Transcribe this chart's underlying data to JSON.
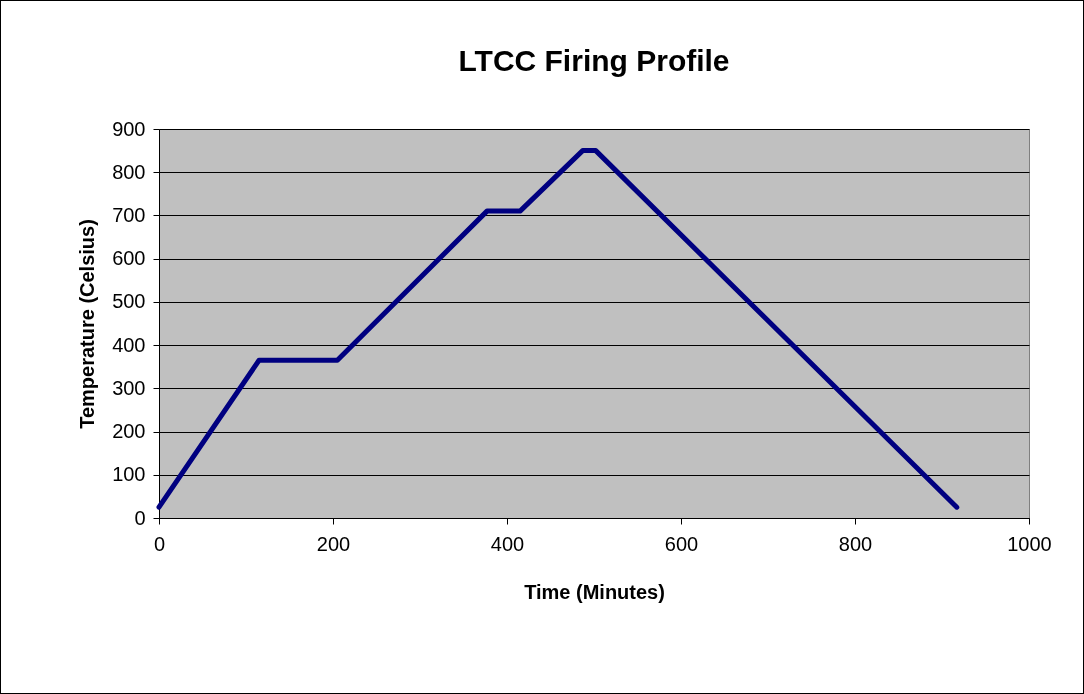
{
  "chart_data": {
    "type": "line",
    "title": "LTCC Firing Profile",
    "xlabel": "Time (Minutes)",
    "ylabel": "Temperature (Celsius)",
    "x": [
      0,
      115,
      205,
      377,
      415,
      487,
      502,
      917
    ],
    "series": [
      {
        "color": "#000080",
        "values": [
          25,
          365,
          365,
          710,
          710,
          850,
          850,
          25
        ]
      }
    ],
    "xlim": [
      0,
      1000
    ],
    "xticks": [
      0,
      200,
      400,
      600,
      800,
      1000
    ],
    "ylim": [
      0,
      900
    ],
    "yticks": [
      0,
      100,
      200,
      300,
      400,
      500,
      600,
      700,
      800,
      900
    ],
    "grid": "y",
    "legend": false,
    "marker": "none",
    "line_style": "solid"
  }
}
